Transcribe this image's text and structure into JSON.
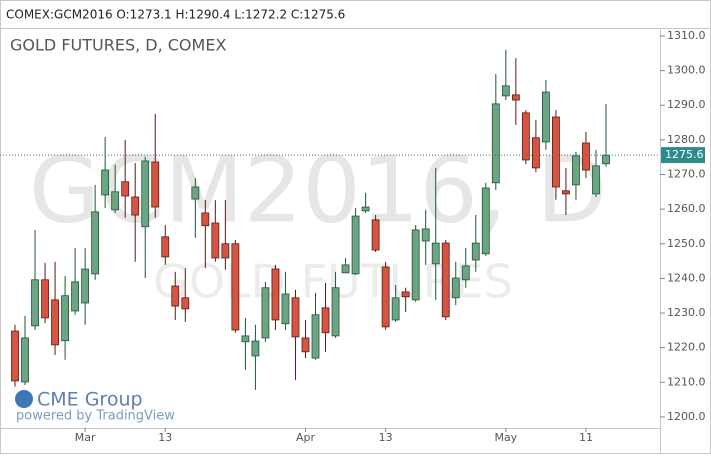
{
  "chart_data": {
    "type": "candlestick",
    "header": "COMEX:GCM2016 O:1273.1 H:1290.4 L:1272.2 C:1275.6",
    "title": "GOLD FUTURES, D, COMEX",
    "watermark": "GCM2016, D",
    "watermark_subtitle": "GOLD FUTURES",
    "logo": "CME Group",
    "logo_caption": "powered by TradingView",
    "categories": [
      null,
      null,
      null,
      null,
      null,
      null,
      null,
      "Mar",
      null,
      null,
      null,
      null,
      null,
      null,
      null,
      "13",
      null,
      null,
      null,
      null,
      null,
      null,
      null,
      null,
      null,
      null,
      null,
      null,
      null,
      "Apr",
      null,
      null,
      null,
      null,
      null,
      null,
      null,
      "13",
      null,
      null,
      null,
      null,
      null,
      null,
      null,
      null,
      null,
      null,
      null,
      "May",
      null,
      null,
      null,
      null,
      null,
      null,
      null,
      "11",
      null,
      null
    ],
    "open": [
      1224.8,
      1210.1,
      1226.3,
      1239.6,
      1233.8,
      1222,
      1230.6,
      1232.9,
      1241.3,
      1264.1,
      1259.8,
      1267.9,
      1263.5,
      1254.9,
      1273.6,
      1252,
      1237.8,
      1234.4,
      1262.9,
      1258.9,
      1256,
      1250,
      1250,
      1221.7,
      1217.6,
      1222.8,
      1242.7,
      1226.9,
      1234.4,
      1222.8,
      1217,
      1231.5,
      1223.4,
      1241.6,
      1241.3,
      1259.5,
      1256.9,
      1243.3,
      1228,
      1236.1,
      1233.8,
      1250.8,
      1244.2,
      1250.2,
      1234.4,
      1239.6,
      1245.3,
      1247.1,
      1267.6,
      1292.7,
      1293,
      1287.8,
      1280.6,
      1279.4,
      1286.6,
      1265.3,
      1267,
      1279.1,
      1264.4,
      1273.1
    ],
    "high": [
      1226.6,
      1229.2,
      1254,
      1244.5,
      1244.8,
      1240.7,
      1248.8,
      1248.8,
      1267,
      1280.8,
      1272.8,
      1280,
      1273.3,
      1275.1,
      1287.5,
      1255.4,
      1241.9,
      1243,
      1269,
      1262.6,
      1262.6,
      1262.6,
      1251.1,
      1228.6,
      1226.6,
      1239,
      1243.9,
      1241.9,
      1236.7,
      1228,
      1235.8,
      1238.7,
      1241.9,
      1245.9,
      1260.3,
      1264.7,
      1258.3,
      1244.8,
      1238.1,
      1237.3,
      1255.4,
      1259.8,
      1271.9,
      1251.1,
      1244.8,
      1248.8,
      1258.3,
      1267.6,
      1299,
      1306,
      1303.6,
      1288.6,
      1285.8,
      1297.3,
      1288.6,
      1271.9,
      1276.5,
      1282.3,
      1277.1,
      1290.4
    ],
    "low": [
      1208.7,
      1209.2,
      1225.1,
      1227.1,
      1217.9,
      1216.5,
      1229.5,
      1226.6,
      1239.6,
      1260.3,
      1258.9,
      1257.5,
      1244.8,
      1240.1,
      1257.5,
      1243.9,
      1228,
      1227.4,
      1251.7,
      1243,
      1244.8,
      1242.5,
      1224.3,
      1213.6,
      1207.8,
      1221.7,
      1225.1,
      1225.1,
      1210.7,
      1217,
      1216.5,
      1218.8,
      1222.8,
      1241.6,
      1241,
      1258.9,
      1247.6,
      1225.1,
      1227.4,
      1230.3,
      1233.2,
      1243.9,
      1233.8,
      1228,
      1232.3,
      1237.3,
      1241.9,
      1246.5,
      1265.5,
      1291.5,
      1284.3,
      1273,
      1270.7,
      1277.1,
      1262.7,
      1258.3,
      1262.7,
      1269,
      1263.5,
      1272.2
    ],
    "close": [
      1210.4,
      1222.8,
      1239.6,
      1228.6,
      1220.8,
      1235,
      1239,
      1242.7,
      1259.2,
      1271.3,
      1265,
      1263.8,
      1258.3,
      1273.9,
      1260.6,
      1246.2,
      1232,
      1231.2,
      1266.4,
      1255.2,
      1245.9,
      1245.9,
      1225.1,
      1223.4,
      1221.9,
      1237.3,
      1228,
      1235.5,
      1223.1,
      1218.8,
      1229.5,
      1224.3,
      1237.3,
      1243.9,
      1258,
      1260.6,
      1248.2,
      1226,
      1234.4,
      1234.7,
      1254,
      1254.3,
      1250.2,
      1228.9,
      1240.1,
      1243.6,
      1250.2,
      1266.1,
      1290.4,
      1295.6,
      1291.5,
      1274.2,
      1271.9,
      1293.8,
      1266.4,
      1264.4,
      1275.4,
      1271.3,
      1272.5,
      1275.6
    ],
    "last_price": 1275.6,
    "up_color": "#6ba583",
    "down_color": "#d75442",
    "ylim": [
      1196.8,
      1312.3
    ],
    "yticks": [
      {
        "value": 1200,
        "label": "1200.0"
      },
      {
        "value": 1210,
        "label": "1210.0"
      },
      {
        "value": 1220,
        "label": "1220.0"
      },
      {
        "value": 1230,
        "label": "1230.0"
      },
      {
        "value": 1240,
        "label": "1240.0"
      },
      {
        "value": 1250,
        "label": "1250.0"
      },
      {
        "value": 1260,
        "label": "1260.0"
      },
      {
        "value": 1270,
        "label": "1270.0"
      },
      {
        "value": 1280,
        "label": "1280.0"
      },
      {
        "value": 1290,
        "label": "1290.0"
      },
      {
        "value": 1300,
        "label": "1300.0"
      },
      {
        "value": 1310,
        "label": "1310.0"
      }
    ]
  }
}
